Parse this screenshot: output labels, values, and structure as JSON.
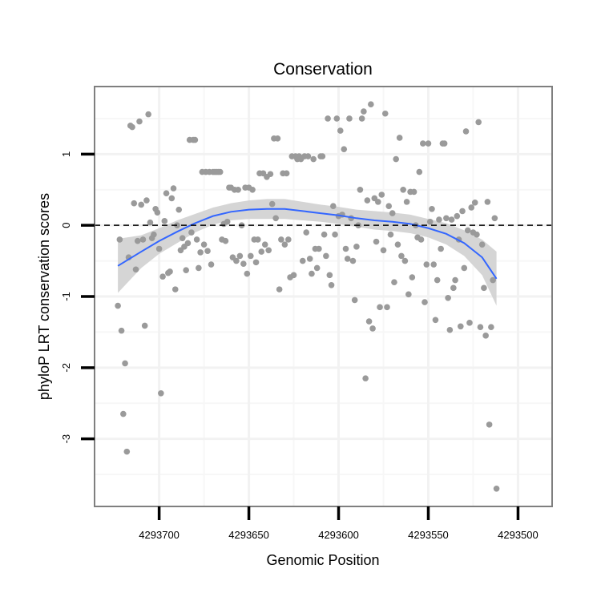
{
  "chart_data": {
    "type": "scatter",
    "title": "Conservation",
    "xlabel": "Genomic Position",
    "ylabel": "phyloP LRT conservation scores",
    "x_reversed": true,
    "xlim": [
      4293736,
      4293481
    ],
    "ylim": [
      -3.95,
      1.95
    ],
    "xticks": [
      4293700,
      4293650,
      4293600,
      4293550,
      4293500
    ],
    "xtick_labels": [
      "4293700",
      "4293650",
      "4293600",
      "4293550",
      "4293500"
    ],
    "yticks": [
      1,
      0,
      -1,
      -2,
      -3
    ],
    "ytick_labels": [
      "1",
      "0",
      "-1",
      "-2",
      "-3"
    ],
    "reference_line": {
      "y": 0,
      "style": "dashed"
    },
    "colors": {
      "points": "#9a9a9a",
      "smooth": "#3366ff",
      "band": "#d0d0d0",
      "panel": "#ffffff",
      "grid": "#f2f2f2",
      "border": "#7f7f7f"
    },
    "points": [
      {
        "x": 4293723,
        "y": -1.13
      },
      {
        "x": 4293722,
        "y": -0.2
      },
      {
        "x": 4293721,
        "y": -1.48
      },
      {
        "x": 4293720,
        "y": -2.65
      },
      {
        "x": 4293719,
        "y": -1.94
      },
      {
        "x": 4293718,
        "y": -3.18
      },
      {
        "x": 4293717,
        "y": -0.45
      },
      {
        "x": 4293716,
        "y": 1.4
      },
      {
        "x": 4293715,
        "y": 1.38
      },
      {
        "x": 4293714,
        "y": 0.31
      },
      {
        "x": 4293713,
        "y": -0.62
      },
      {
        "x": 4293712,
        "y": -0.22
      },
      {
        "x": 4293711,
        "y": 1.46
      },
      {
        "x": 4293710,
        "y": 0.29
      },
      {
        "x": 4293709,
        "y": -0.2
      },
      {
        "x": 4293708,
        "y": -1.41
      },
      {
        "x": 4293707,
        "y": 0.35
      },
      {
        "x": 4293706,
        "y": 1.56
      },
      {
        "x": 4293705,
        "y": 0.04
      },
      {
        "x": 4293704,
        "y": -0.18
      },
      {
        "x": 4293703,
        "y": -0.13
      },
      {
        "x": 4293702,
        "y": 0.23
      },
      {
        "x": 4293701,
        "y": 0.18
      },
      {
        "x": 4293700,
        "y": -0.33
      },
      {
        "x": 4293699,
        "y": -2.36
      },
      {
        "x": 4293698,
        "y": -0.72
      },
      {
        "x": 4293697,
        "y": 0.06
      },
      {
        "x": 4293696,
        "y": 0.45
      },
      {
        "x": 4293695,
        "y": -0.67
      },
      {
        "x": 4293694,
        "y": -0.65
      },
      {
        "x": 4293693,
        "y": 0.38
      },
      {
        "x": 4293692,
        "y": 0.52
      },
      {
        "x": 4293691,
        "y": -0.9
      },
      {
        "x": 4293690,
        "y": 0.0
      },
      {
        "x": 4293689,
        "y": 0.22
      },
      {
        "x": 4293688,
        "y": -0.35
      },
      {
        "x": 4293687,
        "y": -0.18
      },
      {
        "x": 4293686,
        "y": -0.3
      },
      {
        "x": 4293685,
        "y": -0.63
      },
      {
        "x": 4293684,
        "y": -0.25
      },
      {
        "x": 4293683,
        "y": 1.2
      },
      {
        "x": 4293682,
        "y": -0.1
      },
      {
        "x": 4293681,
        "y": 1.2
      },
      {
        "x": 4293680,
        "y": 1.2
      },
      {
        "x": 4293679,
        "y": -0.2
      },
      {
        "x": 4293678,
        "y": -0.6
      },
      {
        "x": 4293677,
        "y": -0.38
      },
      {
        "x": 4293676,
        "y": 0.75
      },
      {
        "x": 4293675,
        "y": -0.27
      },
      {
        "x": 4293674,
        "y": 0.75
      },
      {
        "x": 4293673,
        "y": -0.36
      },
      {
        "x": 4293672,
        "y": 0.75
      },
      {
        "x": 4293671,
        "y": -0.55
      },
      {
        "x": 4293670,
        "y": 0.75
      },
      {
        "x": 4293669,
        "y": 0.75
      },
      {
        "x": 4293668,
        "y": 0.75
      },
      {
        "x": 4293667,
        "y": 0.75
      },
      {
        "x": 4293666,
        "y": 0.75
      },
      {
        "x": 4293665,
        "y": -0.2
      },
      {
        "x": 4293664,
        "y": 0.02
      },
      {
        "x": 4293663,
        "y": -0.22
      },
      {
        "x": 4293662,
        "y": 0.05
      },
      {
        "x": 4293661,
        "y": 0.53
      },
      {
        "x": 4293660,
        "y": 0.53
      },
      {
        "x": 4293659,
        "y": -0.45
      },
      {
        "x": 4293658,
        "y": 0.5
      },
      {
        "x": 4293657,
        "y": -0.5
      },
      {
        "x": 4293656,
        "y": 0.5
      },
      {
        "x": 4293655,
        "y": -0.43
      },
      {
        "x": 4293654,
        "y": 0.0
      },
      {
        "x": 4293653,
        "y": -0.54
      },
      {
        "x": 4293652,
        "y": 0.53
      },
      {
        "x": 4293651,
        "y": -0.68
      },
      {
        "x": 4293650,
        "y": 0.53
      },
      {
        "x": 4293649,
        "y": -0.43
      },
      {
        "x": 4293648,
        "y": 0.5
      },
      {
        "x": 4293647,
        "y": -0.2
      },
      {
        "x": 4293646,
        "y": -0.52
      },
      {
        "x": 4293645,
        "y": -0.2
      },
      {
        "x": 4293644,
        "y": 0.73
      },
      {
        "x": 4293643,
        "y": -0.37
      },
      {
        "x": 4293642,
        "y": 0.73
      },
      {
        "x": 4293641,
        "y": -0.27
      },
      {
        "x": 4293640,
        "y": 0.68
      },
      {
        "x": 4293639,
        "y": -0.35
      },
      {
        "x": 4293638,
        "y": 0.72
      },
      {
        "x": 4293637,
        "y": 0.3
      },
      {
        "x": 4293636,
        "y": 1.22
      },
      {
        "x": 4293635,
        "y": 0.1
      },
      {
        "x": 4293634,
        "y": 1.22
      },
      {
        "x": 4293633,
        "y": -0.9
      },
      {
        "x": 4293632,
        "y": -0.2
      },
      {
        "x": 4293631,
        "y": 0.73
      },
      {
        "x": 4293630,
        "y": -0.27
      },
      {
        "x": 4293629,
        "y": 0.73
      },
      {
        "x": 4293628,
        "y": -0.2
      },
      {
        "x": 4293627,
        "y": -0.73
      },
      {
        "x": 4293626,
        "y": 0.97
      },
      {
        "x": 4293625,
        "y": -0.7
      },
      {
        "x": 4293624,
        "y": 0.97
      },
      {
        "x": 4293623,
        "y": 0.93
      },
      {
        "x": 4293622,
        "y": 0.97
      },
      {
        "x": 4293621,
        "y": 0.93
      },
      {
        "x": 4293620,
        "y": -0.5
      },
      {
        "x": 4293619,
        "y": 0.97
      },
      {
        "x": 4293618,
        "y": -0.1
      },
      {
        "x": 4293617,
        "y": 0.97
      },
      {
        "x": 4293616,
        "y": -0.47
      },
      {
        "x": 4293615,
        "y": -0.68
      },
      {
        "x": 4293614,
        "y": 0.93
      },
      {
        "x": 4293613,
        "y": -0.33
      },
      {
        "x": 4293612,
        "y": -0.6
      },
      {
        "x": 4293611,
        "y": -0.33
      },
      {
        "x": 4293610,
        "y": 0.97
      },
      {
        "x": 4293609,
        "y": 0.97
      },
      {
        "x": 4293608,
        "y": -0.13
      },
      {
        "x": 4293607,
        "y": -0.43
      },
      {
        "x": 4293606,
        "y": 1.5
      },
      {
        "x": 4293605,
        "y": -0.7
      },
      {
        "x": 4293604,
        "y": -0.84
      },
      {
        "x": 4293603,
        "y": 0.27
      },
      {
        "x": 4293602,
        "y": -0.13
      },
      {
        "x": 4293601,
        "y": 1.5
      },
      {
        "x": 4293600,
        "y": 0.13
      },
      {
        "x": 4293599,
        "y": 1.33
      },
      {
        "x": 4293598,
        "y": 0.15
      },
      {
        "x": 4293597,
        "y": 1.07
      },
      {
        "x": 4293596,
        "y": -0.33
      },
      {
        "x": 4293595,
        "y": -0.47
      },
      {
        "x": 4293594,
        "y": 1.5
      },
      {
        "x": 4293593,
        "y": 0.1
      },
      {
        "x": 4293592,
        "y": -0.5
      },
      {
        "x": 4293591,
        "y": -1.05
      },
      {
        "x": 4293590,
        "y": -0.3
      },
      {
        "x": 4293589,
        "y": 0.0
      },
      {
        "x": 4293588,
        "y": 0.5
      },
      {
        "x": 4293587,
        "y": 1.5
      },
      {
        "x": 4293586,
        "y": 1.6
      },
      {
        "x": 4293585,
        "y": -2.15
      },
      {
        "x": 4293584,
        "y": 0.35
      },
      {
        "x": 4293583,
        "y": -1.35
      },
      {
        "x": 4293582,
        "y": 1.7
      },
      {
        "x": 4293581,
        "y": -1.45
      },
      {
        "x": 4293580,
        "y": 0.38
      },
      {
        "x": 4293579,
        "y": -0.23
      },
      {
        "x": 4293578,
        "y": 0.33
      },
      {
        "x": 4293577,
        "y": -1.15
      },
      {
        "x": 4293576,
        "y": 0.43
      },
      {
        "x": 4293575,
        "y": -0.35
      },
      {
        "x": 4293574,
        "y": 1.57
      },
      {
        "x": 4293573,
        "y": -1.15
      },
      {
        "x": 4293572,
        "y": 0.27
      },
      {
        "x": 4293571,
        "y": -0.13
      },
      {
        "x": 4293570,
        "y": 0.17
      },
      {
        "x": 4293569,
        "y": -0.8
      },
      {
        "x": 4293568,
        "y": 0.93
      },
      {
        "x": 4293567,
        "y": -0.27
      },
      {
        "x": 4293566,
        "y": 1.23
      },
      {
        "x": 4293565,
        "y": -0.43
      },
      {
        "x": 4293564,
        "y": 0.5
      },
      {
        "x": 4293563,
        "y": -0.5
      },
      {
        "x": 4293562,
        "y": 0.33
      },
      {
        "x": 4293561,
        "y": -0.97
      },
      {
        "x": 4293560,
        "y": 0.47
      },
      {
        "x": 4293559,
        "y": -0.73
      },
      {
        "x": 4293558,
        "y": 0.47
      },
      {
        "x": 4293557,
        "y": 0.0
      },
      {
        "x": 4293556,
        "y": -0.17
      },
      {
        "x": 4293555,
        "y": 0.75
      },
      {
        "x": 4293554,
        "y": -0.2
      },
      {
        "x": 4293553,
        "y": 1.15
      },
      {
        "x": 4293552,
        "y": -1.08
      },
      {
        "x": 4293551,
        "y": -0.55
      },
      {
        "x": 4293550,
        "y": 1.15
      },
      {
        "x": 4293549,
        "y": 0.05
      },
      {
        "x": 4293548,
        "y": 0.23
      },
      {
        "x": 4293547,
        "y": -0.55
      },
      {
        "x": 4293546,
        "y": -1.33
      },
      {
        "x": 4293545,
        "y": -0.77
      },
      {
        "x": 4293544,
        "y": 0.08
      },
      {
        "x": 4293543,
        "y": -0.33
      },
      {
        "x": 4293542,
        "y": 1.15
      },
      {
        "x": 4293541,
        "y": 1.15
      },
      {
        "x": 4293540,
        "y": 0.1
      },
      {
        "x": 4293539,
        "y": -1.02
      },
      {
        "x": 4293538,
        "y": -1.47
      },
      {
        "x": 4293537,
        "y": 0.08
      },
      {
        "x": 4293536,
        "y": -0.88
      },
      {
        "x": 4293535,
        "y": -0.77
      },
      {
        "x": 4293534,
        "y": 0.13
      },
      {
        "x": 4293533,
        "y": -0.2
      },
      {
        "x": 4293532,
        "y": -1.42
      },
      {
        "x": 4293531,
        "y": 0.2
      },
      {
        "x": 4293530,
        "y": -0.6
      },
      {
        "x": 4293529,
        "y": 1.32
      },
      {
        "x": 4293528,
        "y": -0.07
      },
      {
        "x": 4293527,
        "y": -1.37
      },
      {
        "x": 4293526,
        "y": 0.25
      },
      {
        "x": 4293525,
        "y": -0.1
      },
      {
        "x": 4293524,
        "y": 0.32
      },
      {
        "x": 4293523,
        "y": -0.13
      },
      {
        "x": 4293522,
        "y": 1.45
      },
      {
        "x": 4293521,
        "y": -1.43
      },
      {
        "x": 4293520,
        "y": -0.27
      },
      {
        "x": 4293519,
        "y": -0.88
      },
      {
        "x": 4293518,
        "y": -1.55
      },
      {
        "x": 4293517,
        "y": 0.33
      },
      {
        "x": 4293516,
        "y": -2.8
      },
      {
        "x": 4293515,
        "y": -1.43
      },
      {
        "x": 4293514,
        "y": -0.77
      },
      {
        "x": 4293513,
        "y": 0.1
      },
      {
        "x": 4293512,
        "y": -3.7
      }
    ],
    "smooth_line": {
      "x": [
        4293723,
        4293710,
        4293700,
        4293690,
        4293680,
        4293670,
        4293660,
        4293650,
        4293640,
        4293630,
        4293620,
        4293610,
        4293600,
        4293590,
        4293580,
        4293570,
        4293560,
        4293550,
        4293540,
        4293530,
        4293520,
        4293512
      ],
      "y": [
        -0.57,
        -0.37,
        -0.22,
        -0.09,
        0.03,
        0.13,
        0.19,
        0.22,
        0.23,
        0.23,
        0.2,
        0.17,
        0.14,
        0.1,
        0.07,
        0.05,
        0.02,
        -0.04,
        -0.12,
        -0.25,
        -0.45,
        -0.75
      ],
      "ci_lower": [
        -0.95,
        -0.6,
        -0.4,
        -0.25,
        -0.1,
        0.01,
        0.07,
        0.09,
        0.09,
        0.09,
        0.07,
        0.05,
        0.02,
        -0.02,
        -0.06,
        -0.08,
        -0.11,
        -0.17,
        -0.27,
        -0.43,
        -0.7,
        -1.13
      ],
      "ci_upper": [
        -0.19,
        -0.14,
        -0.04,
        0.07,
        0.16,
        0.25,
        0.31,
        0.35,
        0.37,
        0.37,
        0.33,
        0.29,
        0.26,
        0.22,
        0.2,
        0.18,
        0.15,
        0.09,
        0.03,
        -0.07,
        -0.2,
        -0.37
      ]
    }
  }
}
